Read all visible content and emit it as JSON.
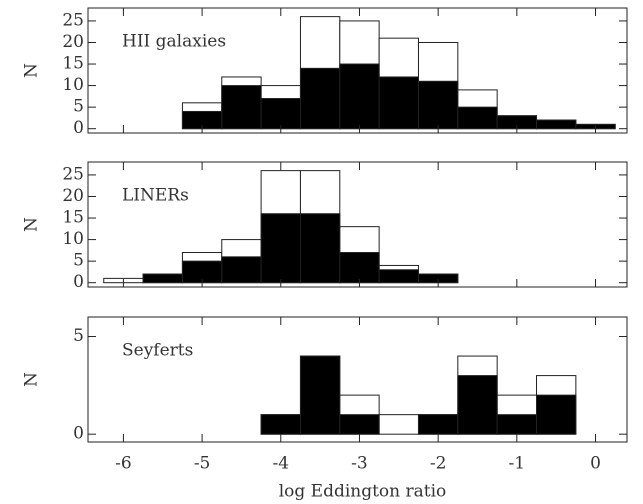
{
  "chart_data": [
    {
      "type": "histogram",
      "title": "HII galaxies",
      "ylabel": "N",
      "bins": [
        -6.25,
        -5.75,
        -5.25,
        -4.75,
        -4.25,
        -3.75,
        -3.25,
        -2.75,
        -2.25,
        -1.75,
        -1.25,
        -0.75,
        -0.25,
        0.25
      ],
      "xlim": [
        -6.45,
        0.4
      ],
      "ylim": [
        -1,
        28
      ],
      "yticks": [
        0,
        5,
        10,
        15,
        20,
        25
      ],
      "series": [
        {
          "color": "#ffffff",
          "values": [
            0,
            0,
            6,
            12,
            10,
            26,
            25,
            21,
            20,
            9,
            3,
            2,
            1
          ]
        },
        {
          "color": "#000000",
          "values": [
            0,
            0,
            4,
            10,
            7,
            14,
            15,
            12,
            11,
            5,
            3,
            2,
            1
          ]
        }
      ]
    },
    {
      "type": "histogram",
      "title": "LINERs",
      "ylabel": "N",
      "bins": [
        -6.25,
        -5.75,
        -5.25,
        -4.75,
        -4.25,
        -3.75,
        -3.25,
        -2.75,
        -2.25,
        -1.75,
        -1.25,
        -0.75,
        -0.25,
        0.25
      ],
      "xlim": [
        -6.45,
        0.4
      ],
      "ylim": [
        -1,
        28
      ],
      "yticks": [
        0,
        5,
        10,
        15,
        20,
        25
      ],
      "series": [
        {
          "color": "#ffffff",
          "values": [
            1,
            2,
            7,
            10,
            26,
            26,
            13,
            4,
            2,
            0,
            0,
            0,
            0
          ]
        },
        {
          "color": "#000000",
          "values": [
            0,
            2,
            5,
            6,
            16,
            16,
            7,
            3,
            2,
            0,
            0,
            0,
            0
          ]
        }
      ]
    },
    {
      "type": "histogram",
      "title": "Seyferts",
      "ylabel": "N",
      "xlabel": "log Eddington ratio",
      "bins": [
        -6.25,
        -5.75,
        -5.25,
        -4.75,
        -4.25,
        -3.75,
        -3.25,
        -2.75,
        -2.25,
        -1.75,
        -1.25,
        -0.75,
        -0.25,
        0.25
      ],
      "xlim": [
        -6.45,
        0.4
      ],
      "xticks": [
        -6,
        -5,
        -4,
        -3,
        -2,
        -1,
        0
      ],
      "ylim": [
        -0.4,
        6
      ],
      "yticks": [
        0,
        5
      ],
      "series": [
        {
          "color": "#ffffff",
          "values": [
            0,
            0,
            0,
            0,
            1,
            4,
            2,
            1,
            1,
            4,
            2,
            3,
            0
          ]
        },
        {
          "color": "#000000",
          "values": [
            0,
            0,
            0,
            0,
            1,
            4,
            1,
            0,
            1,
            3,
            1,
            2,
            0
          ]
        }
      ]
    }
  ]
}
